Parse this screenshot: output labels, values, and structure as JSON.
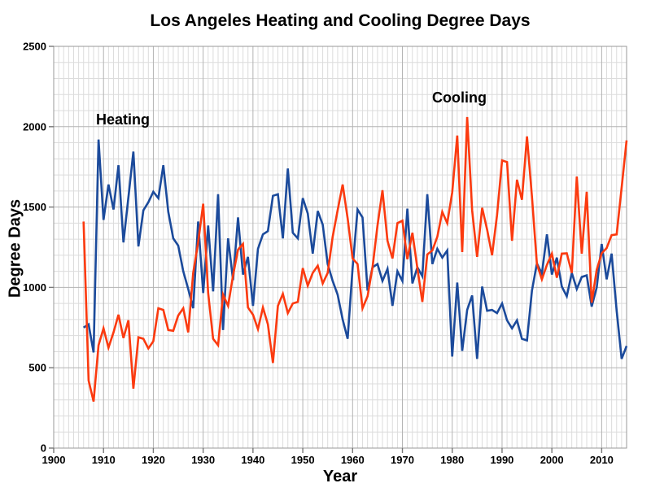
{
  "title": "Los Angeles Heating and Cooling Degree Days",
  "axes": {
    "x_label": "Year",
    "y_label": "Degree Days",
    "x_tick_labels": [
      "1900",
      "1910",
      "1920",
      "1930",
      "1940",
      "1950",
      "1960",
      "1970",
      "1980",
      "1990",
      "2000",
      "2010"
    ],
    "y_tick_labels": [
      "0",
      "500",
      "1000",
      "1500",
      "2000",
      "2500"
    ]
  },
  "annotations": {
    "heating": "Heating",
    "cooling": "Cooling"
  },
  "colors": {
    "heating": "#1b4a9b",
    "cooling": "#fb3a0f",
    "grid_minor": "#dcdcdc",
    "grid_major": "#b3b3b3",
    "frame": "#999999",
    "tick": "#777777",
    "text": "#000000"
  },
  "chart_data": {
    "type": "line",
    "title": "Los Angeles Heating and Cooling Degree Days",
    "xlabel": "Year",
    "ylabel": "Degree Days",
    "xlim": [
      1900,
      2015
    ],
    "ylim": [
      0,
      2500
    ],
    "x_major_step": 10,
    "x_minor_step": 1,
    "y_major_step": 500,
    "y_minor_step": 100,
    "grid": "on",
    "legend_position": "in-plot text labels",
    "x": [
      1906,
      1907,
      1908,
      1909,
      1910,
      1911,
      1912,
      1913,
      1914,
      1915,
      1916,
      1917,
      1918,
      1919,
      1920,
      1921,
      1922,
      1923,
      1924,
      1925,
      1926,
      1927,
      1928,
      1929,
      1930,
      1931,
      1932,
      1933,
      1934,
      1935,
      1936,
      1937,
      1938,
      1939,
      1940,
      1941,
      1942,
      1943,
      1944,
      1945,
      1946,
      1947,
      1948,
      1949,
      1950,
      1951,
      1952,
      1953,
      1954,
      1955,
      1956,
      1957,
      1958,
      1959,
      1960,
      1961,
      1962,
      1963,
      1964,
      1965,
      1966,
      1967,
      1968,
      1969,
      1970,
      1971,
      1972,
      1973,
      1974,
      1975,
      1976,
      1977,
      1978,
      1979,
      1980,
      1981,
      1982,
      1983,
      1984,
      1985,
      1986,
      1987,
      1988,
      1989,
      1990,
      1991,
      1992,
      1993,
      1994,
      1995,
      1996,
      1997,
      1998,
      1999,
      2000,
      2001,
      2002,
      2003,
      2004,
      2005,
      2006,
      2007,
      2008,
      2009,
      2010,
      2011,
      2012,
      2013,
      2014,
      2015
    ],
    "series": [
      {
        "name": "Heating",
        "color_key": "heating",
        "values": [
          750,
          770,
          595,
          1920,
          1420,
          1640,
          1485,
          1760,
          1280,
          1560,
          1845,
          1255,
          1480,
          1530,
          1595,
          1555,
          1760,
          1470,
          1305,
          1260,
          1100,
          990,
          870,
          1410,
          965,
          1385,
          975,
          1580,
          735,
          1305,
          1045,
          1435,
          1080,
          1190,
          885,
          1240,
          1330,
          1350,
          1570,
          1580,
          1305,
          1740,
          1340,
          1305,
          1555,
          1460,
          1210,
          1475,
          1390,
          1145,
          1040,
          955,
          800,
          680,
          1120,
          1485,
          1435,
          980,
          1125,
          1145,
          1040,
          1115,
          885,
          1100,
          1040,
          1490,
          1025,
          1125,
          1070,
          1580,
          1145,
          1240,
          1185,
          1230,
          570,
          1030,
          605,
          860,
          950,
          555,
          1005,
          855,
          860,
          840,
          900,
          795,
          745,
          795,
          680,
          670,
          980,
          1150,
          1085,
          1330,
          1080,
          1185,
          1005,
          945,
          1090,
          990,
          1065,
          1075,
          880,
          1000,
          1270,
          1050,
          1210,
          855,
          555,
          635
        ]
      },
      {
        "name": "Cooling",
        "color_key": "cooling",
        "values": [
          1410,
          420,
          290,
          640,
          745,
          625,
          720,
          830,
          685,
          795,
          370,
          690,
          680,
          620,
          665,
          870,
          860,
          735,
          730,
          825,
          870,
          720,
          1090,
          1280,
          1520,
          965,
          680,
          640,
          955,
          885,
          1075,
          1235,
          1270,
          875,
          830,
          740,
          875,
          770,
          530,
          885,
          960,
          840,
          900,
          910,
          1120,
          1010,
          1090,
          1135,
          1025,
          1090,
          1315,
          1480,
          1640,
          1430,
          1180,
          1145,
          870,
          945,
          1125,
          1385,
          1605,
          1290,
          1180,
          1400,
          1415,
          1175,
          1340,
          1120,
          910,
          1205,
          1230,
          1315,
          1470,
          1400,
          1590,
          1945,
          1220,
          2060,
          1480,
          1190,
          1495,
          1360,
          1200,
          1450,
          1790,
          1780,
          1290,
          1670,
          1545,
          1940,
          1565,
          1145,
          1050,
          1140,
          1210,
          1060,
          1210,
          1212,
          1090,
          1690,
          1210,
          1595,
          905,
          1110,
          1212,
          1245,
          1325,
          1330,
          1620,
          1915
        ]
      }
    ]
  }
}
